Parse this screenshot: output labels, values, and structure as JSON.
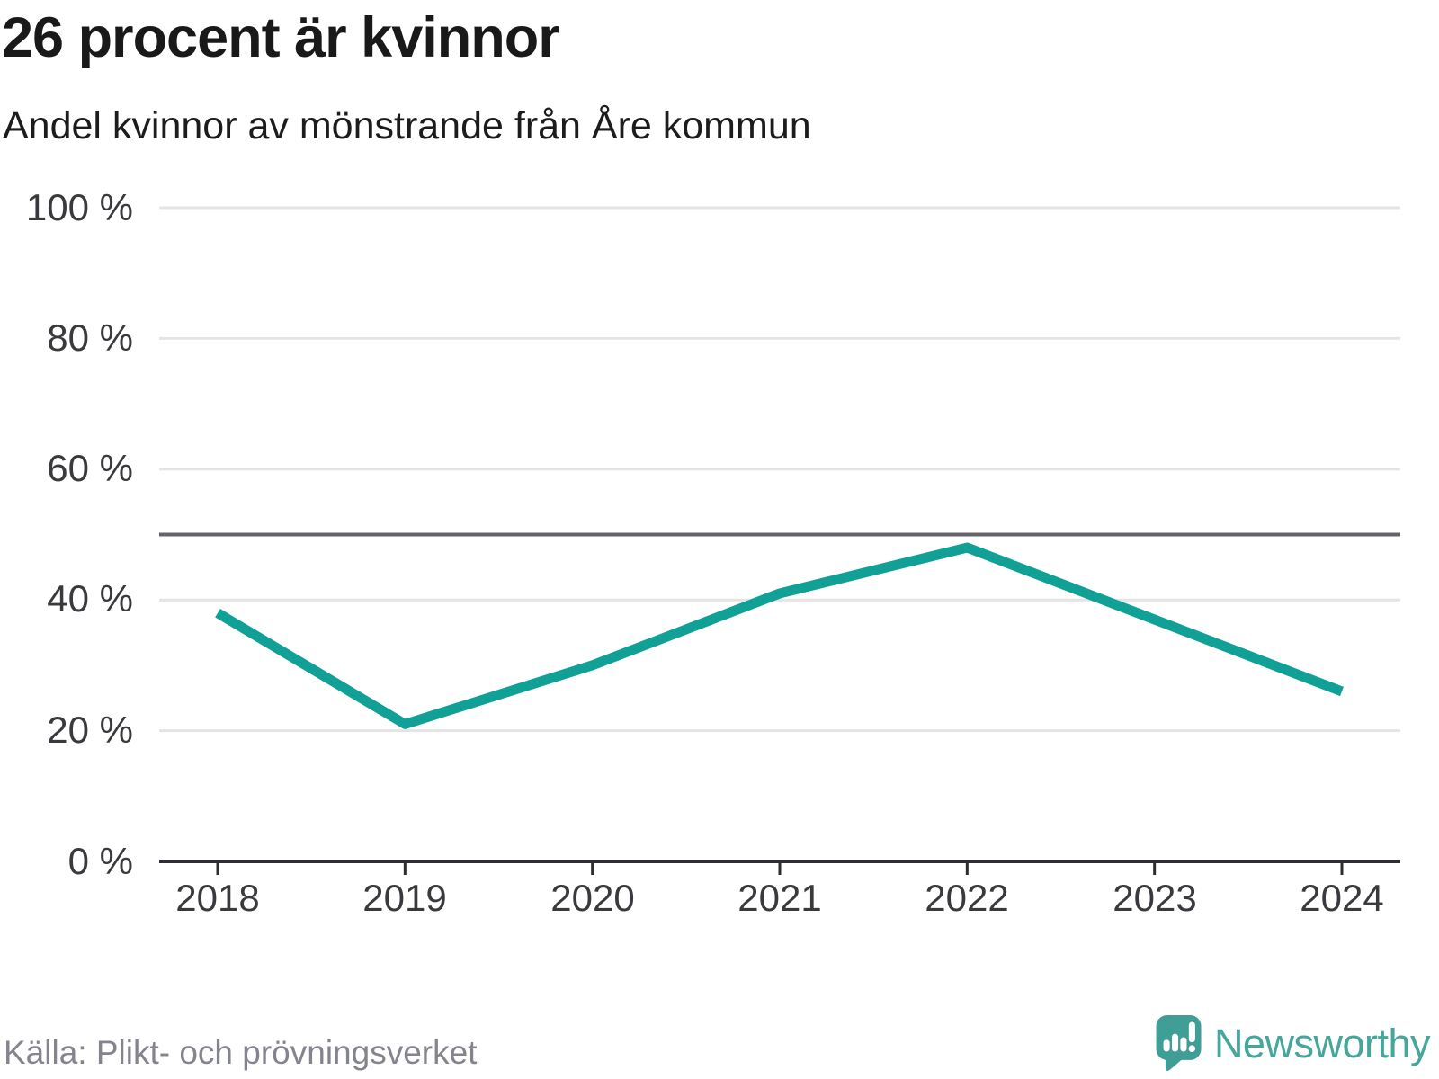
{
  "header": {
    "title": "26 procent är kvinnor",
    "subtitle": "Andel kvinnor av mönstrande från Åre kommun"
  },
  "chart_data": {
    "type": "line",
    "title": "26 procent är kvinnor",
    "subtitle": "Andel kvinnor av mönstrande från Åre kommun",
    "categories": [
      "2018",
      "2019",
      "2020",
      "2021",
      "2022",
      "2023",
      "2024"
    ],
    "series": [
      {
        "name": "Andel kvinnor av mönstrande",
        "values": [
          38,
          21,
          30,
          41,
          48,
          37,
          26
        ]
      }
    ],
    "xlabel": "",
    "ylabel": "",
    "ylim": [
      0,
      100
    ],
    "y_ticks": [
      100,
      80,
      60,
      40,
      20,
      0
    ],
    "y_tick_labels": [
      "100 %",
      "80 %",
      "60 %",
      "40 %",
      "20 %",
      "0 %"
    ],
    "reference_line": 50,
    "grid": "horizontal",
    "legend_position": "none",
    "line_color": "#11a096",
    "grid_color": "#e4e4e4",
    "axis_color": "#2e2e32",
    "reference_line_color": "#646469",
    "tick_label_color": "#3a3a3e"
  },
  "footer": {
    "source": "Källa: Plikt- och prövningsverket",
    "brand": "Newsworthy",
    "brand_color": "#3f9e95",
    "brand_text_color": "#45a69b"
  }
}
